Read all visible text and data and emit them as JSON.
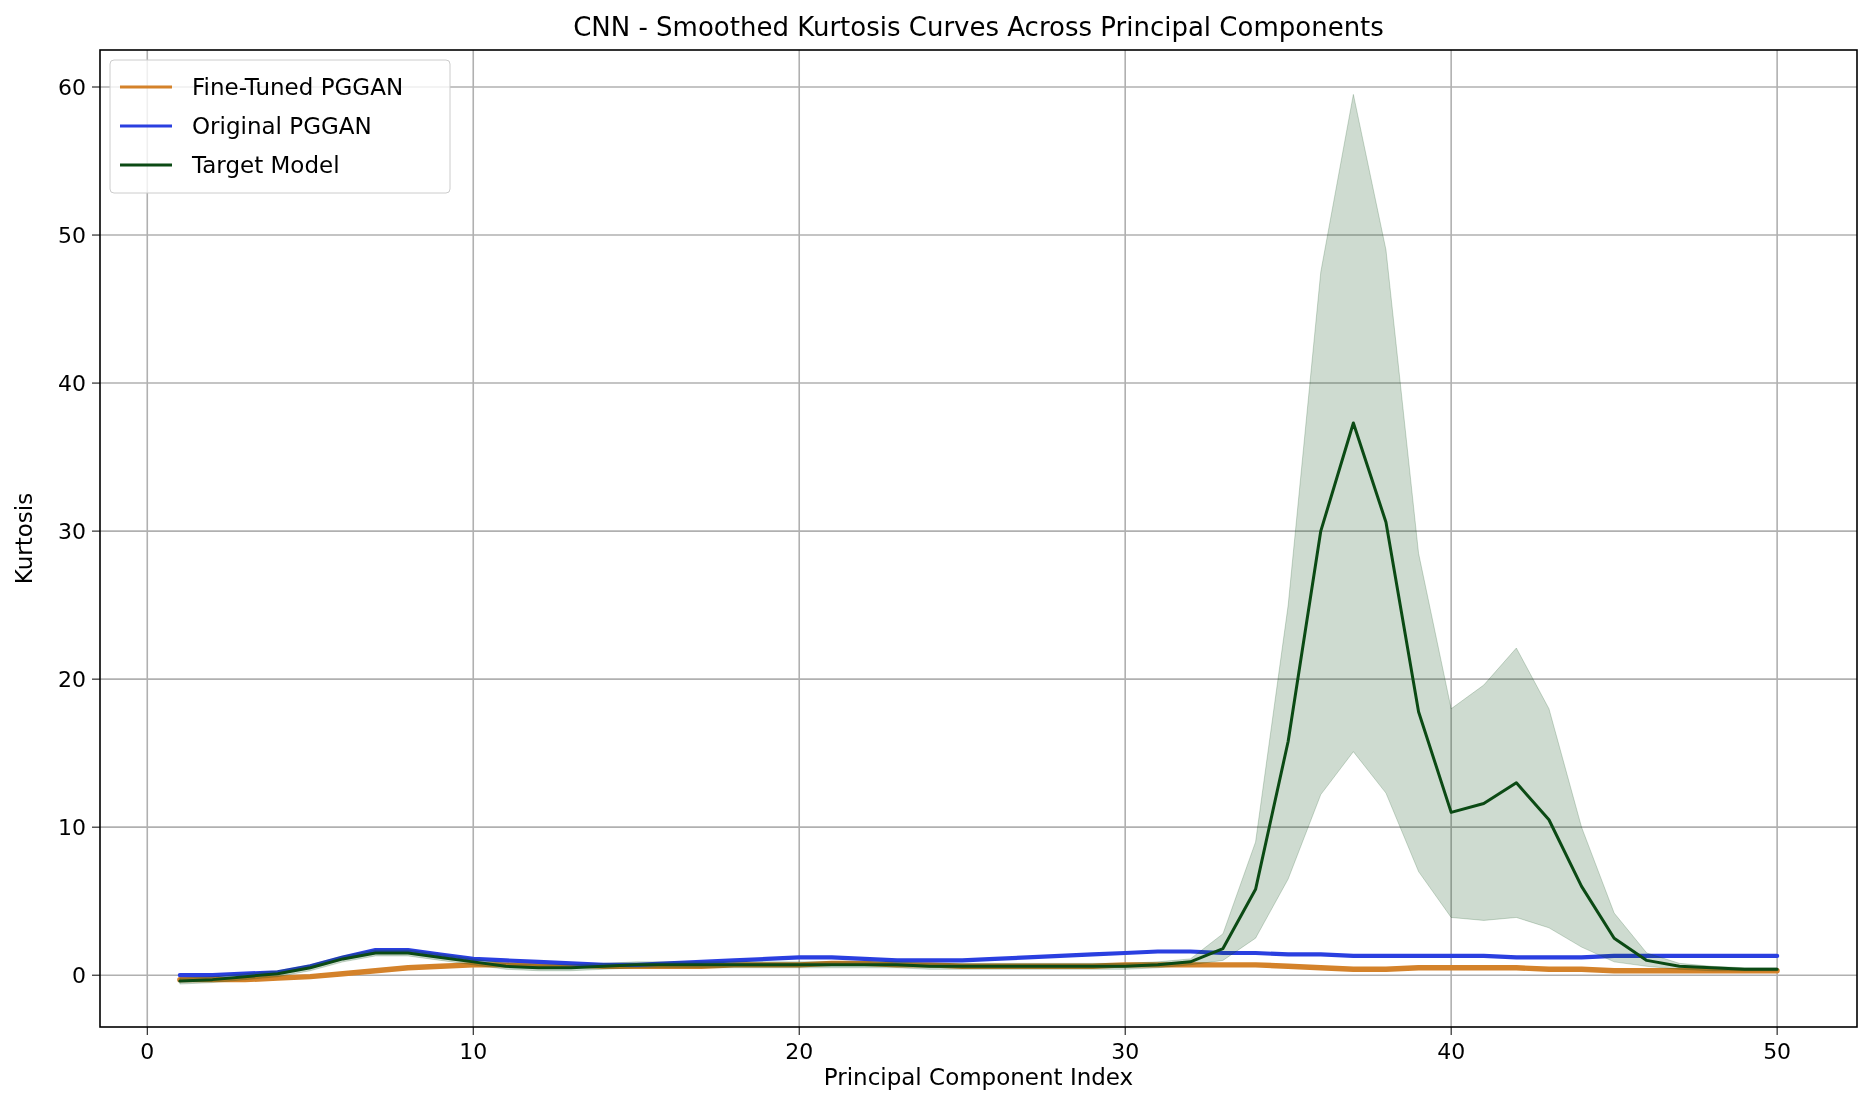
{
  "chart_data": {
    "type": "line",
    "title": "CNN - Smoothed Kurtosis Curves Across Principal Components",
    "xlabel": "Principal Component Index",
    "ylabel": "Kurtosis",
    "x": [
      1,
      2,
      3,
      4,
      5,
      6,
      7,
      8,
      9,
      10,
      11,
      12,
      13,
      14,
      15,
      16,
      17,
      18,
      19,
      20,
      21,
      22,
      23,
      24,
      25,
      26,
      27,
      28,
      29,
      30,
      31,
      32,
      33,
      34,
      35,
      36,
      37,
      38,
      39,
      40,
      41,
      42,
      43,
      44,
      45,
      46,
      47,
      48,
      49,
      50
    ],
    "xlim": [
      -1.45,
      52.45
    ],
    "xticks": [
      0,
      10,
      20,
      30,
      40,
      50
    ],
    "ylim": [
      -3.5,
      62.5
    ],
    "yticks": [
      0,
      10,
      20,
      30,
      40,
      50,
      60
    ],
    "grid": true,
    "legend": "top left",
    "series": [
      {
        "name": "Fine-Tuned PGGAN",
        "color": "#d4822a",
        "values": [
          -0.3,
          -0.3,
          -0.3,
          -0.2,
          -0.1,
          0.1,
          0.3,
          0.5,
          0.6,
          0.7,
          0.7,
          0.7,
          0.7,
          0.6,
          0.6,
          0.6,
          0.6,
          0.7,
          0.7,
          0.7,
          0.8,
          0.8,
          0.7,
          0.7,
          0.6,
          0.6,
          0.6,
          0.6,
          0.6,
          0.7,
          0.7,
          0.7,
          0.7,
          0.7,
          0.6,
          0.5,
          0.4,
          0.4,
          0.5,
          0.5,
          0.5,
          0.5,
          0.4,
          0.4,
          0.3,
          0.3,
          0.3,
          0.3,
          0.3,
          0.3
        ]
      },
      {
        "name": "Original PGGAN",
        "color": "#2a3fe0",
        "values": [
          0,
          0,
          0.1,
          0.2,
          0.6,
          1.2,
          1.7,
          1.7,
          1.4,
          1.1,
          1.0,
          0.9,
          0.8,
          0.7,
          0.7,
          0.8,
          0.9,
          1.0,
          1.1,
          1.2,
          1.2,
          1.1,
          1.0,
          1.0,
          1.0,
          1.1,
          1.2,
          1.3,
          1.4,
          1.5,
          1.6,
          1.6,
          1.5,
          1.5,
          1.4,
          1.4,
          1.3,
          1.3,
          1.3,
          1.3,
          1.3,
          1.2,
          1.2,
          1.2,
          1.3,
          1.3,
          1.3,
          1.3,
          1.3,
          1.3
        ]
      },
      {
        "name": "Target Model",
        "color": "#0b4a14",
        "values": [
          -0.4,
          -0.3,
          -0.1,
          0.1,
          0.5,
          1.1,
          1.5,
          1.5,
          1.2,
          0.9,
          0.6,
          0.5,
          0.5,
          0.6,
          0.7,
          0.7,
          0.7,
          0.7,
          0.7,
          0.7,
          0.7,
          0.7,
          0.7,
          0.6,
          0.6,
          0.6,
          0.6,
          0.6,
          0.6,
          0.6,
          0.7,
          0.9,
          1.8,
          5.8,
          15.8,
          30,
          37.3,
          30.6,
          17.8,
          11,
          11.6,
          13,
          10.5,
          6,
          2.5,
          1.0,
          0.6,
          0.5,
          0.4,
          0.4
        ],
        "lower": [
          -0.6,
          -0.5,
          -0.3,
          -0.1,
          0.3,
          0.9,
          1.3,
          1.3,
          1.0,
          0.7,
          0.4,
          0.3,
          0.3,
          0.4,
          0.5,
          0.5,
          0.5,
          0.5,
          0.5,
          0.5,
          0.5,
          0.5,
          0.5,
          0.4,
          0.4,
          0.4,
          0.4,
          0.4,
          0.4,
          0.4,
          0.5,
          0.7,
          1.0,
          2.5,
          6.5,
          12.2,
          15.1,
          12.3,
          7,
          3.9,
          3.7,
          3.9,
          3.2,
          1.9,
          0.9,
          0.6,
          0.4,
          0.3,
          0.3,
          0.3
        ],
        "upper": [
          -0.2,
          -0.1,
          0.1,
          0.3,
          0.7,
          1.3,
          1.7,
          1.7,
          1.4,
          1.1,
          0.8,
          0.7,
          0.7,
          0.8,
          0.9,
          0.9,
          0.9,
          0.9,
          0.9,
          0.9,
          0.9,
          0.9,
          0.9,
          0.8,
          0.8,
          0.8,
          0.8,
          0.8,
          0.8,
          0.8,
          0.9,
          1.1,
          2.8,
          9,
          25,
          47.5,
          59.5,
          49,
          28.5,
          18,
          19.6,
          22.1,
          18,
          10,
          4.2,
          1.5,
          0.8,
          0.6,
          0.5,
          0.5
        ]
      }
    ]
  }
}
